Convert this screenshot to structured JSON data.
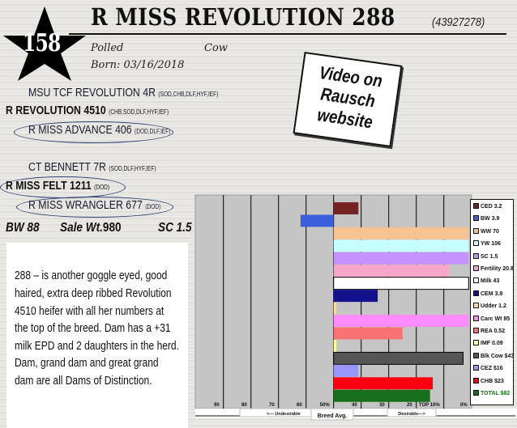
{
  "lot_number": "158",
  "header": {
    "name": "R MISS REVOLUTION 288",
    "registration": "(43927278)",
    "polled": "Polled",
    "sex": "Cow",
    "born": "Born: 03/16/2018"
  },
  "video_note": [
    "Video on",
    "Rausch",
    "website"
  ],
  "pedigree": {
    "sire_sire": {
      "name": "MSU TCF REVOLUTION 4R",
      "tags": "(SOD,CHB,DLF,HYF,IEF)"
    },
    "sire": {
      "name": "R REVOLUTION 4510",
      "tags": "(CHB,SOD,DLF,HYF,IEF)"
    },
    "sire_dam": {
      "name": "R MISS ADVANCE 406",
      "tags": "(DOD,DLF,IEF)"
    },
    "dam_sire": {
      "name": "CT BENNETT 7R",
      "tags": "(SOD,DLF,HYF,IEF)"
    },
    "dam": {
      "name": "R MISS FELT 1211",
      "tags": "(DOD)"
    },
    "dam_dam": {
      "name": "R MISS WRANGLER 677",
      "tags": "(DOD)"
    }
  },
  "stats": {
    "bw": "BW 88",
    "sale_wt_label": "Sale Wt.",
    "sale_wt": "980",
    "sc": "SC 1.5"
  },
  "description_lines": [
    "288 – is another goggle eyed, good",
    "haired, extra deep ribbed Revolution",
    "4510 heifer with all her numbers at",
    "the top of the breed.  Dam has a +31",
    "milk EPD and 2 daughters in the herd.",
    "Dam, grand dam and great grand",
    "dam are all Dams of Distinction."
  ],
  "chart_data": {
    "type": "bar",
    "orientation": "horizontal",
    "x_axis": "percentile rank",
    "xlim": [
      100,
      0
    ],
    "baseline": 50,
    "tick_labels": [
      "90",
      "80",
      "70",
      "60",
      "50%",
      "40",
      "30",
      "20",
      "TOP 10%",
      "0%"
    ],
    "tick_values": [
      90,
      80,
      70,
      60,
      50,
      40,
      30,
      20,
      10,
      0
    ],
    "bottom_labels": {
      "undesirable": "<— Undesirable",
      "average": "Breed Avg.",
      "desirable": "Desirable—>"
    },
    "grid": true,
    "legend_position": "right",
    "traits": [
      {
        "label": "CED",
        "epd": "3.2",
        "percentile": 41,
        "color": "#742222"
      },
      {
        "label": "BW",
        "epd": "3.9",
        "percentile": 62,
        "color": "#3b5fdc"
      },
      {
        "label": "WW",
        "epd": "70",
        "percentile": 1,
        "color": "#f9c293"
      },
      {
        "label": "YW",
        "epd": "106",
        "percentile": 1,
        "color": "#c8ffff"
      },
      {
        "label": "SC",
        "epd": "1.5",
        "percentile": 1,
        "color": "#c593ff"
      },
      {
        "label": "Fertility",
        "epd": "20.8",
        "percentile": 8,
        "color": "#f7a6c9"
      },
      {
        "label": "Milk",
        "epd": "43",
        "percentile": 1,
        "color": "#ffffff"
      },
      {
        "label": "CEM",
        "epd": "3.8",
        "percentile": 34,
        "color": "#13108c"
      },
      {
        "label": "Udder",
        "epd": "1.2",
        "percentile": 49,
        "color": "#fcd9a0"
      },
      {
        "label": "Carc Wt",
        "epd": "85",
        "percentile": 1,
        "color": "#ff8cff"
      },
      {
        "label": "REA",
        "epd": "0.52",
        "percentile": 25,
        "color": "#fb7272"
      },
      {
        "label": "IMF",
        "epd": "0.09",
        "percentile": 49,
        "color": "#ffff99"
      },
      {
        "label": "Blk Cow",
        "epd": "$43",
        "percentile": 3,
        "color": "#555555"
      },
      {
        "label": "CEZ",
        "epd": "$16",
        "percentile": 41,
        "color": "#9797ff"
      },
      {
        "label": "CHB",
        "epd": "$23",
        "percentile": 14,
        "color": "#fa0010"
      },
      {
        "label": "TOTAL",
        "epd": "$82",
        "percentile": 15,
        "color": "#176f1c"
      }
    ]
  }
}
